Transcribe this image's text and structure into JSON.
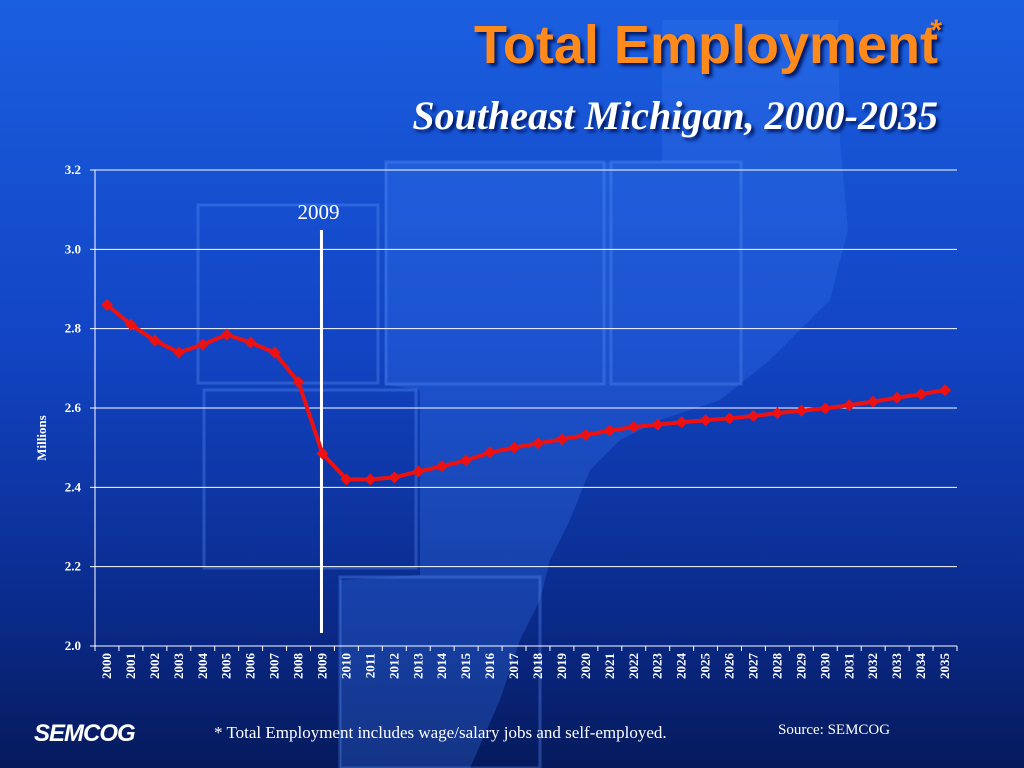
{
  "slide": {
    "title": "Total Employment",
    "title_mark": "*",
    "subtitle": "Southeast Michigan, 2000-2035",
    "footnote": "* Total Employment includes wage/salary jobs and self-employed.",
    "source": "Source: SEMCOG",
    "logo": "SEMCOG"
  },
  "colors": {
    "series": "#ee1111",
    "text": "#ffffff",
    "title": "#ff8a1c",
    "marker_line": "#ffffff"
  },
  "chart_data": {
    "type": "line",
    "title": "Total Employment",
    "subtitle": "Southeast Michigan, 2000-2035",
    "xlabel": "",
    "ylabel": "Millions",
    "ylim": [
      2.0,
      3.2
    ],
    "yticks": [
      "2.0",
      "2.2",
      "2.4",
      "2.6",
      "2.8",
      "3.0",
      "3.2"
    ],
    "grid": true,
    "legend": "none",
    "x": [
      "2000",
      "2001",
      "2002",
      "2003",
      "2004",
      "2005",
      "2006",
      "2007",
      "2008",
      "2009",
      "2010",
      "2011",
      "2012",
      "2013",
      "2014",
      "2015",
      "2016",
      "2017",
      "2018",
      "2019",
      "2020",
      "2021",
      "2022",
      "2023",
      "2024",
      "2025",
      "2026",
      "2027",
      "2028",
      "2029",
      "2030",
      "2031",
      "2032",
      "2033",
      "2034",
      "2035"
    ],
    "series": [
      {
        "values": [
          2.86,
          2.81,
          2.77,
          2.74,
          2.76,
          2.785,
          2.765,
          2.74,
          2.665,
          2.485,
          2.42,
          2.42,
          2.425,
          2.44,
          2.453,
          2.468,
          2.488,
          2.5,
          2.511,
          2.521,
          2.532,
          2.543,
          2.552,
          2.558,
          2.564,
          2.569,
          2.574,
          2.58,
          2.587,
          2.593,
          2.599,
          2.607,
          2.616,
          2.626,
          2.635,
          2.645
        ]
      }
    ],
    "annotations": [
      {
        "label": "2009",
        "x": "2009"
      }
    ]
  }
}
